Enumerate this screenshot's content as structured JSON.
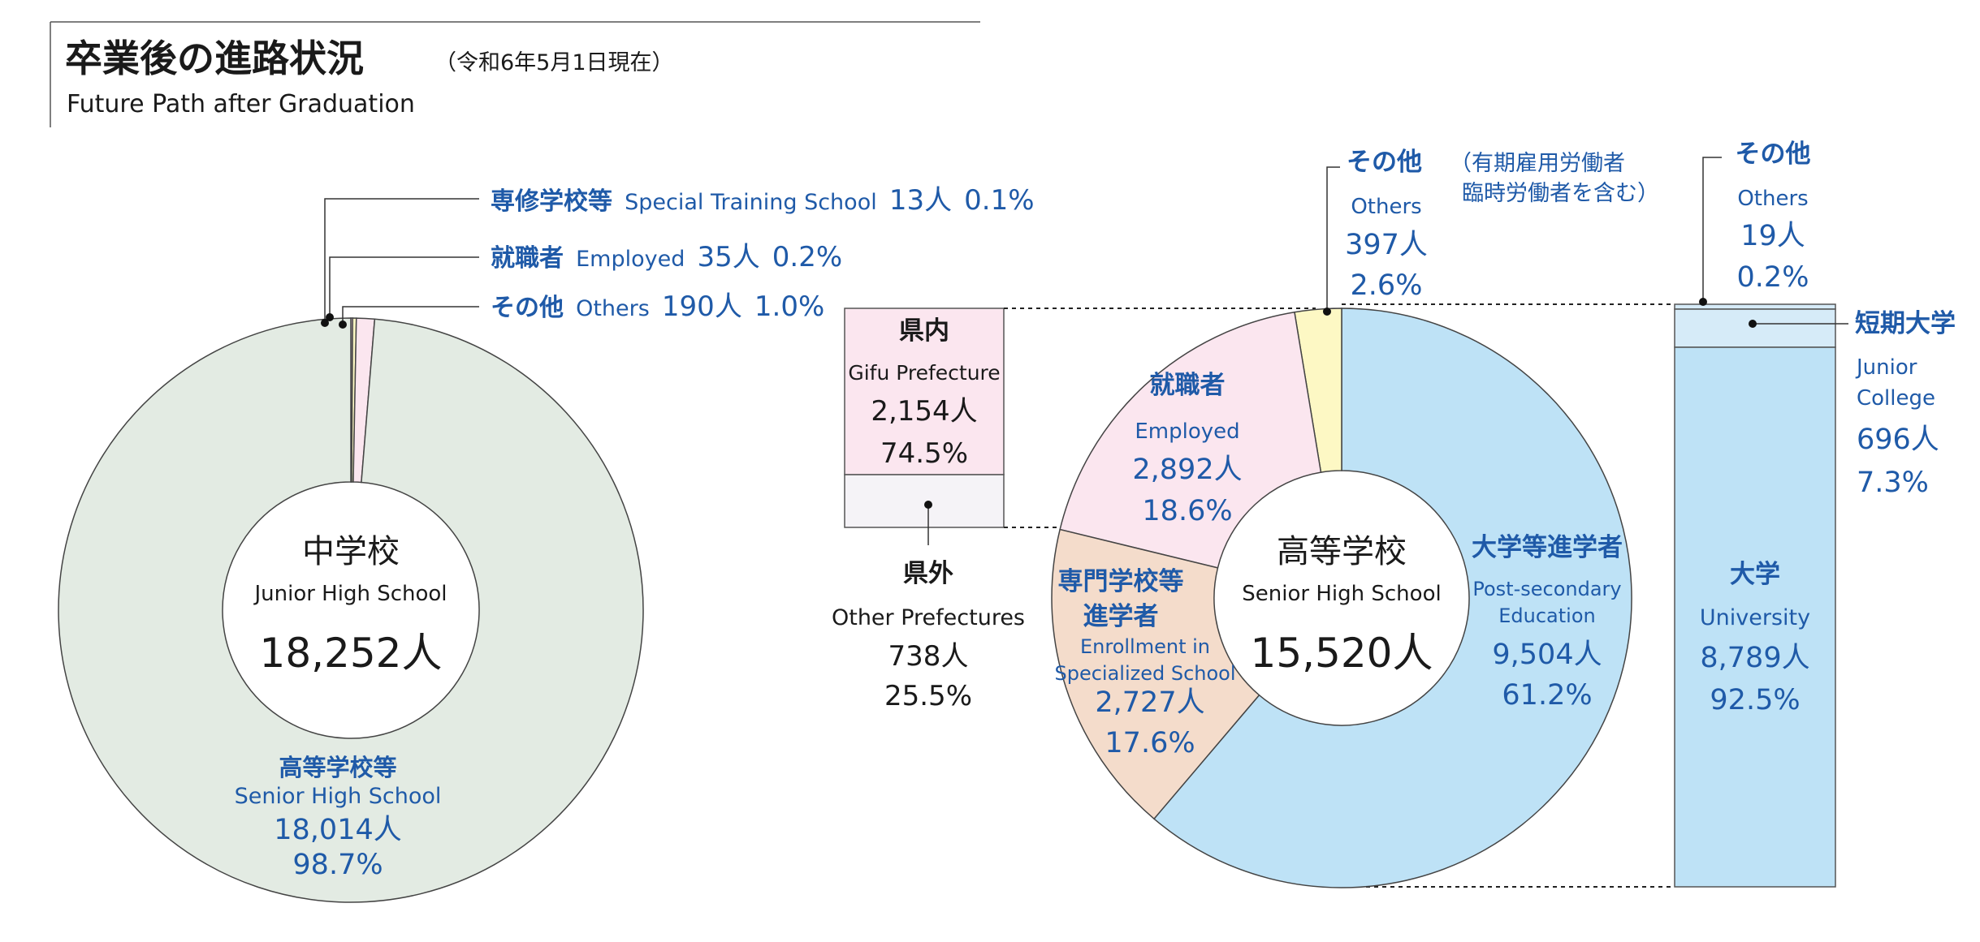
{
  "header": {
    "title": "卒業後の進路状況",
    "date": "（令和6年5月1日現在）",
    "title_en": "Future Path after Graduation"
  },
  "colors": {
    "senior_high_green": "#e3ebe3",
    "employed_pink": "#fbe6ef",
    "others_yellow": "#fdf8c4",
    "special_training": "#f7d7de",
    "vocational_peach": "#f4dccb",
    "postsecondary_blue": "#bee2f6",
    "junior_college_blue": "#d6ebf8",
    "other_pref_gray": "#f5f3f7",
    "label_blue": "#1f5aa8"
  },
  "chart_data": [
    {
      "type": "pie",
      "title": "中学校",
      "subtitle": "Junior High School",
      "total": "18,252人",
      "slices": [
        {
          "label_ja": "高等学校等",
          "label_en": "Senior High School",
          "count": "18,014人",
          "percent": "98.7%",
          "value": 98.7
        },
        {
          "label_ja": "専修学校等",
          "label_en": "Special Training School",
          "count": "13人",
          "percent": "0.1%",
          "value": 0.1
        },
        {
          "label_ja": "就職者",
          "label_en": "Employed",
          "count": "35人",
          "percent": "0.2%",
          "value": 0.2
        },
        {
          "label_ja": "その他",
          "label_en": "Others",
          "count": "190人",
          "percent": "1.0%",
          "value": 1.0
        }
      ]
    },
    {
      "type": "pie",
      "title": "高等学校",
      "subtitle": "Senior High School",
      "total": "15,520人",
      "slices": [
        {
          "label_ja": "大学等進学者",
          "label_en_1": "Post-secondary",
          "label_en_2": "Education",
          "count": "9,504人",
          "percent": "61.2%",
          "value": 61.2
        },
        {
          "label_ja_1": "専門学校等",
          "label_ja_2": "進学者",
          "label_en_1": "Enrollment in",
          "label_en_2": "Specialized School",
          "count": "2,727人",
          "percent": "17.6%",
          "value": 17.6
        },
        {
          "label_ja": "就職者",
          "label_en": "Employed",
          "count": "2,892人",
          "percent": "18.6%",
          "value": 18.6
        },
        {
          "label_ja": "その他",
          "label_note_1": "（有期雇用労働者",
          "label_note_2": "臨時労働者を含む）",
          "label_en": "Others",
          "count": "397人",
          "percent": "2.6%",
          "value": 2.6
        }
      ]
    },
    {
      "type": "bar",
      "stacked": true,
      "name": "employment_breakdown",
      "segments": [
        {
          "label_ja": "県内",
          "label_en": "Gifu Prefecture",
          "count": "2,154人",
          "percent": "74.5%",
          "value": 74.5
        },
        {
          "label_ja": "県外",
          "label_en": "Other Prefectures",
          "count": "738人",
          "percent": "25.5%",
          "value": 25.5
        }
      ]
    },
    {
      "type": "bar",
      "stacked": true,
      "name": "postsecondary_breakdown",
      "segments": [
        {
          "label_ja": "その他",
          "label_en": "Others",
          "count": "19人",
          "percent": "0.2%",
          "value": 0.2
        },
        {
          "label_ja": "短期大学",
          "label_en_1": "Junior",
          "label_en_2": "College",
          "count": "696人",
          "percent": "7.3%",
          "value": 7.3
        },
        {
          "label_ja": "大学",
          "label_en": "University",
          "count": "8,789人",
          "percent": "92.5%",
          "value": 92.5
        }
      ]
    }
  ]
}
